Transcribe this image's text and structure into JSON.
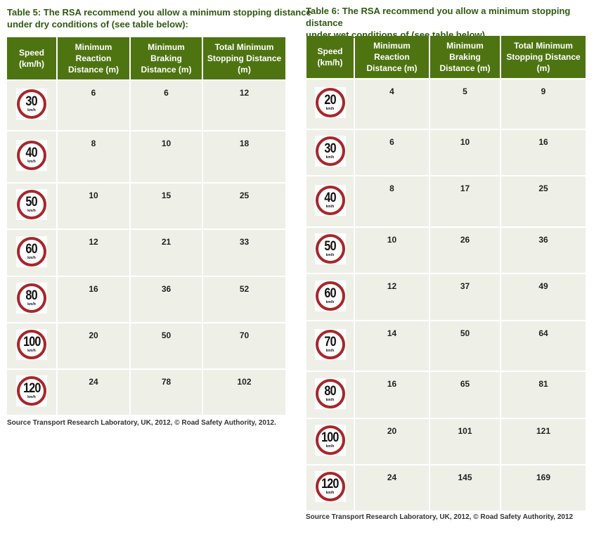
{
  "tables": [
    {
      "title_line1": "Table 5: The RSA recommend you allow a minimum stopping distance",
      "title_line2": "under dry conditions of (see table below):",
      "headers": [
        "Speed (km/h)",
        "Minimum Reaction Distance (m)",
        "Minimum Braking Distance (m)",
        "Total Minimum Stopping Distance (m)"
      ],
      "rows": [
        {
          "speed": "30",
          "reaction": "6",
          "braking": "6",
          "total": "12"
        },
        {
          "speed": "40",
          "reaction": "8",
          "braking": "10",
          "total": "18"
        },
        {
          "speed": "50",
          "reaction": "10",
          "braking": "15",
          "total": "25"
        },
        {
          "speed": "60",
          "reaction": "12",
          "braking": "21",
          "total": "33"
        },
        {
          "speed": "80",
          "reaction": "16",
          "braking": "36",
          "total": "52"
        },
        {
          "speed": "100",
          "reaction": "20",
          "braking": "50",
          "total": "70"
        },
        {
          "speed": "120",
          "reaction": "24",
          "braking": "78",
          "total": "102"
        }
      ],
      "source": "Source Transport Research Laboratory, UK, 2012, © Road Safety Authority, 2012."
    },
    {
      "title_line1": "Table 6: The RSA recommend you allow a minimum stopping distance",
      "title_line2": "under wet conditions of (see table below)",
      "headers": [
        "Speed (km/h)",
        "Minimum Reaction Distance (m)",
        "Minimum Braking Distance (m)",
        "Total Minimum Stopping Distance (m)"
      ],
      "rows": [
        {
          "speed": "20",
          "reaction": "4",
          "braking": "5",
          "total": "9"
        },
        {
          "speed": "30",
          "reaction": "6",
          "braking": "10",
          "total": "16"
        },
        {
          "speed": "40",
          "reaction": "8",
          "braking": "17",
          "total": "25"
        },
        {
          "speed": "50",
          "reaction": "10",
          "braking": "26",
          "total": "36"
        },
        {
          "speed": "60",
          "reaction": "12",
          "braking": "37",
          "total": "49"
        },
        {
          "speed": "70",
          "reaction": "14",
          "braking": "50",
          "total": "64"
        },
        {
          "speed": "80",
          "reaction": "16",
          "braking": "65",
          "total": "81"
        },
        {
          "speed": "100",
          "reaction": "20",
          "braking": "101",
          "total": "121"
        },
        {
          "speed": "120",
          "reaction": "24",
          "braking": "145",
          "total": "169"
        }
      ],
      "source": "Source Transport Research Laboratory, UK, 2012, © Road Safety Authority, 2012"
    }
  ],
  "sign_unit": "km/h",
  "colors": {
    "header_bg": "#4e7412",
    "title": "#2f5a12",
    "cell_bg": "#eef0e8",
    "sign_ring": "#a8262a"
  }
}
